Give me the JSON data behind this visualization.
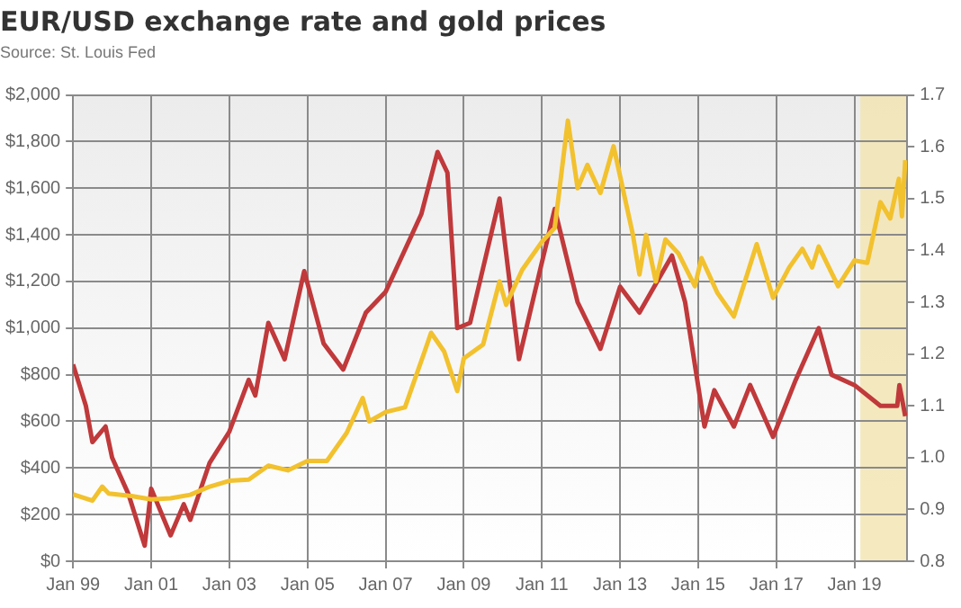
{
  "chart_data": {
    "type": "line",
    "title": "EUR/USD exchange rate and gold prices",
    "annotations": [
      "Source: St. Louis Fed"
    ],
    "xlim": [
      "1999-01",
      "2020-05-08"
    ],
    "xticks": [
      {
        "value": "1999-01",
        "label": "Jan 99"
      },
      {
        "value": "2001-01",
        "label": "Jan 01"
      },
      {
        "value": "2003-01",
        "label": "Jan 03"
      },
      {
        "value": "2005-01",
        "label": "Jan 05"
      },
      {
        "value": "2007-01",
        "label": "Jan 07"
      },
      {
        "value": "2009-01",
        "label": "Jan 09"
      },
      {
        "value": "2011-01",
        "label": "Jan 11"
      },
      {
        "value": "2013-01",
        "label": "Jan 13"
      },
      {
        "value": "2015-01",
        "label": "Jan 15"
      },
      {
        "value": "2017-01",
        "label": "Jan 17"
      },
      {
        "value": "2019-01",
        "label": "Jan 19"
      }
    ],
    "ylim": [
      0,
      2000
    ],
    "yticks": [
      {
        "value": 0,
        "label": "$0"
      },
      {
        "value": 200,
        "label": "$200"
      },
      {
        "value": 400,
        "label": "$400"
      },
      {
        "value": 600,
        "label": "$600"
      },
      {
        "value": 800,
        "label": "$800"
      },
      {
        "value": 1000,
        "label": "$1,000"
      },
      {
        "value": 1200,
        "label": "$1,200"
      },
      {
        "value": 1400,
        "label": "$1,400"
      },
      {
        "value": 1600,
        "label": "$1,600"
      },
      {
        "value": 1800,
        "label": "$1,800"
      },
      {
        "value": 2000,
        "label": "$2,000"
      }
    ],
    "y2lim": [
      0.8,
      1.7
    ],
    "y2ticks": [
      0.8,
      0.9,
      {
        "value": 1,
        "label": "1.0"
      },
      1.1,
      1.2,
      1.3,
      1.4,
      1.5,
      1.6,
      1.7
    ],
    "grid": true,
    "bands": [
      {
        "axis": "x",
        "from": "2019-02-25",
        "to": "2020-05-08",
        "color": "#f3e3b0"
      }
    ],
    "series": [
      {
        "color": "#f2c12e",
        "x": [
          "1999-01",
          "1999-07",
          "1999-10",
          "1999-12",
          "2000-07",
          "2001-01",
          "2001-07",
          "2002-01",
          "2002-07",
          "2003-01",
          "2003-07",
          "2004-01",
          "2004-07",
          "2005-01",
          "2005-07",
          "2006-01",
          "2006-06",
          "2006-08",
          "2007-01",
          "2007-07",
          "2008-01",
          "2008-03",
          "2008-07",
          "2008-11",
          "2009-01",
          "2009-07",
          "2009-12",
          "2010-02",
          "2010-07",
          "2011-01",
          "2011-05",
          "2011-09",
          "2011-12",
          "2012-03",
          "2012-07",
          "2012-11",
          "2013-05",
          "2013-07",
          "2013-09",
          "2013-12",
          "2014-03",
          "2014-07",
          "2014-12",
          "2015-02",
          "2015-07",
          "2015-12",
          "2016-07",
          "2016-12",
          "2017-05",
          "2017-09",
          "2017-12",
          "2018-02",
          "2018-08",
          "2019-01",
          "2019-05",
          "2019-09",
          "2019-12",
          "2020-02-20",
          "2020-03-20",
          "2020-04-20"
        ],
        "values": [
          287,
          260,
          320,
          290,
          280,
          265,
          270,
          285,
          320,
          345,
          350,
          410,
          390,
          430,
          430,
          550,
          700,
          600,
          640,
          660,
          900,
          980,
          900,
          730,
          870,
          930,
          1200,
          1100,
          1250,
          1370,
          1430,
          1890,
          1600,
          1700,
          1580,
          1780,
          1400,
          1230,
          1400,
          1200,
          1380,
          1320,
          1180,
          1300,
          1150,
          1050,
          1360,
          1130,
          1260,
          1340,
          1260,
          1350,
          1180,
          1290,
          1280,
          1540,
          1470,
          1640,
          1480,
          1720
        ]
      },
      {
        "color": "#c0393b",
        "axis": "y2",
        "x": [
          "1999-01",
          "1999-05",
          "1999-07",
          "1999-11",
          "2000-01",
          "2000-06",
          "2000-11",
          "2001-01",
          "2001-07",
          "2001-11",
          "2002-01",
          "2002-07",
          "2003-01",
          "2003-07",
          "2003-09",
          "2004-01",
          "2004-06",
          "2004-12",
          "2005-06",
          "2005-12",
          "2006-07",
          "2007-01",
          "2007-12",
          "2008-05",
          "2008-08",
          "2008-11",
          "2009-03",
          "2009-12",
          "2010-06",
          "2010-12",
          "2011-05",
          "2011-12",
          "2012-07",
          "2013-01",
          "2013-07",
          "2014-05",
          "2014-09",
          "2015-03",
          "2015-06",
          "2015-12",
          "2016-05",
          "2016-12",
          "2017-07",
          "2018-02",
          "2018-06",
          "2019-01",
          "2019-09",
          "2020-02-05",
          "2020-02-25",
          "2020-04-20"
        ],
        "values": [
          1.18,
          1.1,
          1.03,
          1.06,
          1.0,
          0.93,
          0.83,
          0.94,
          0.85,
          0.91,
          0.88,
          0.99,
          1.05,
          1.15,
          1.12,
          1.26,
          1.19,
          1.36,
          1.22,
          1.17,
          1.28,
          1.32,
          1.47,
          1.59,
          1.55,
          1.25,
          1.26,
          1.5,
          1.19,
          1.35,
          1.48,
          1.3,
          1.21,
          1.33,
          1.28,
          1.39,
          1.3,
          1.06,
          1.13,
          1.06,
          1.14,
          1.04,
          1.15,
          1.25,
          1.16,
          1.14,
          1.1,
          1.1,
          1.14,
          1.08
        ]
      }
    ]
  }
}
